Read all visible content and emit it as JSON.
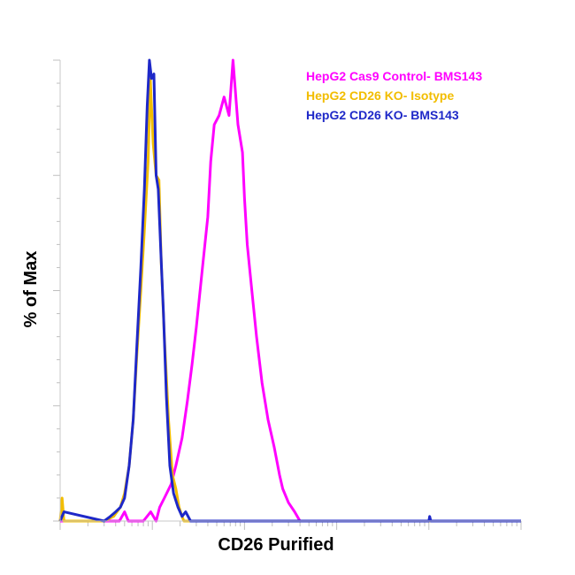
{
  "chart_data": {
    "type": "line",
    "title": "",
    "xlabel": "CD26 Purified",
    "ylabel": "% of Max",
    "xscale": "log",
    "xlim": [
      0.1,
      10000
    ],
    "ylim": [
      0,
      100
    ],
    "grid": false,
    "legend_placement": "top-right",
    "series": [
      {
        "name": "HepG2 Cas9 Control- BMS143",
        "color": "#ff00ff",
        "x": [
          0.1,
          0.44,
          0.5,
          0.55,
          0.8,
          0.96,
          1.1,
          1.2,
          1.35,
          1.6,
          1.8,
          2.1,
          2.4,
          2.7,
          3.0,
          3.5,
          4.0,
          4.3,
          4.7,
          5.3,
          6.0,
          6.8,
          7.5,
          8.5,
          9.5,
          10.0,
          10.7,
          12.0,
          13.5,
          15.5,
          18.0,
          21.0,
          24.0,
          26.0,
          30.0,
          35.0,
          40.0,
          10000
        ],
        "y": [
          0,
          0,
          2,
          0,
          0,
          2,
          0,
          3,
          5,
          8,
          12,
          18,
          26,
          34,
          42,
          55,
          66,
          78,
          86,
          88,
          92,
          88,
          100,
          86,
          80,
          70,
          60,
          50,
          40,
          30,
          22,
          16,
          10,
          7,
          4,
          2,
          0,
          0
        ]
      },
      {
        "name": "HepG2 CD26 KO- Isotype",
        "color": "#f2bd00",
        "x": [
          0.1,
          0.105,
          0.11,
          0.3,
          0.38,
          0.45,
          0.5,
          0.56,
          0.62,
          0.68,
          0.75,
          0.82,
          0.9,
          0.95,
          1.02,
          1.1,
          1.18,
          1.25,
          1.35,
          1.5,
          1.65,
          1.8,
          1.95,
          2.1,
          2.2,
          10000
        ],
        "y": [
          0,
          5,
          0,
          0,
          1,
          3,
          6,
          12,
          22,
          36,
          50,
          63,
          78,
          96,
          82,
          75,
          74,
          56,
          40,
          22,
          10,
          7,
          3,
          1,
          0,
          0
        ]
      },
      {
        "name": "HepG2 CD26 KO- BMS143",
        "color": "#1e28c8",
        "x": [
          0.1,
          0.11,
          0.3,
          0.35,
          0.4,
          0.45,
          0.5,
          0.56,
          0.62,
          0.68,
          0.75,
          0.82,
          0.88,
          0.93,
          0.98,
          1.04,
          1.1,
          1.16,
          1.24,
          1.32,
          1.42,
          1.55,
          1.7,
          1.9,
          2.1,
          2.3,
          2.6,
          3.0,
          1000,
          1020,
          1050,
          10000
        ],
        "y": [
          0,
          2,
          0,
          1,
          2,
          3,
          5,
          12,
          22,
          38,
          55,
          72,
          90,
          100,
          96,
          97,
          75,
          72,
          58,
          45,
          27,
          12,
          6,
          3,
          1,
          2,
          0,
          0,
          0,
          1,
          0,
          0
        ]
      }
    ]
  }
}
